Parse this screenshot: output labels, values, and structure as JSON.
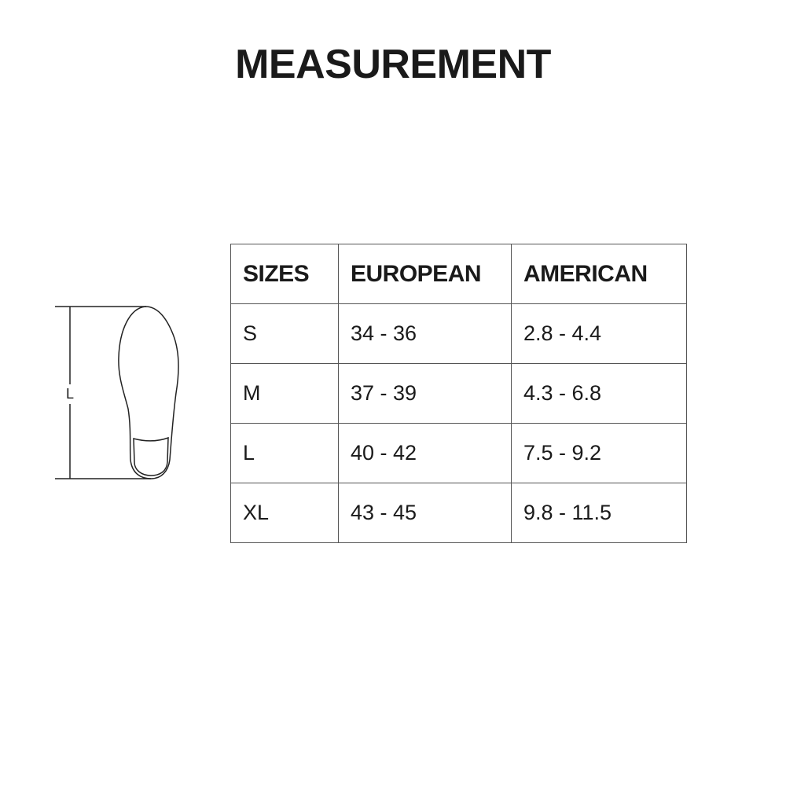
{
  "title": "MEASUREMENT",
  "diagram": {
    "length_label": "L"
  },
  "table": {
    "headers": [
      "SIZES",
      "EUROPEAN",
      "AMERICAN"
    ],
    "rows": [
      [
        "S",
        "34 - 36",
        "2.8 - 4.4"
      ],
      [
        "M",
        "37 - 39",
        "4.3 - 6.8"
      ],
      [
        "L",
        "40 - 42",
        "7.5 - 9.2"
      ],
      [
        "XL",
        "43 - 45",
        "9.8 - 11.5"
      ]
    ]
  }
}
